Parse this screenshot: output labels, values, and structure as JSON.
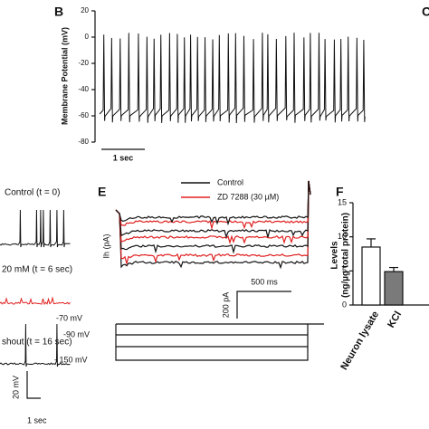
{
  "panel_b": {
    "label": "B",
    "y_label": "Membrane Potential (mV)",
    "yticks": [
      20,
      0,
      -20,
      -40,
      -60,
      -80
    ],
    "ylim": [
      -80,
      20
    ],
    "scale_bar": "1 sec"
  },
  "panel_c": {
    "label": "C"
  },
  "panel_d": {
    "control": "Control (t = 0)",
    "treatment": "20 mM (t = 6 sec)",
    "washout": "shout (t = 16 sec)",
    "scale_v": "20 mV",
    "scale_t": "1 sec"
  },
  "panel_e": {
    "label": "E",
    "legend": [
      "Control",
      "ZD 7288 (30 µM)"
    ],
    "y_label": "Ih (pA)",
    "scale_t": "500 ms",
    "scale_i": "200 pA",
    "steps": [
      "-70 mV",
      "-90 mV",
      "- 150 mV"
    ]
  },
  "panel_f": {
    "label": "F",
    "y_label": [
      "Levels",
      "(ng/µg total protein)"
    ],
    "categories": [
      "Neuron lysate",
      "KCl"
    ],
    "values": [
      8.5,
      4.9
    ],
    "errors": [
      1.2,
      0.6
    ],
    "colors": [
      "#ffffff",
      "#7a7a7a"
    ],
    "ylim": [
      0,
      15
    ],
    "yticks": [
      0,
      5,
      10,
      15
    ]
  }
}
